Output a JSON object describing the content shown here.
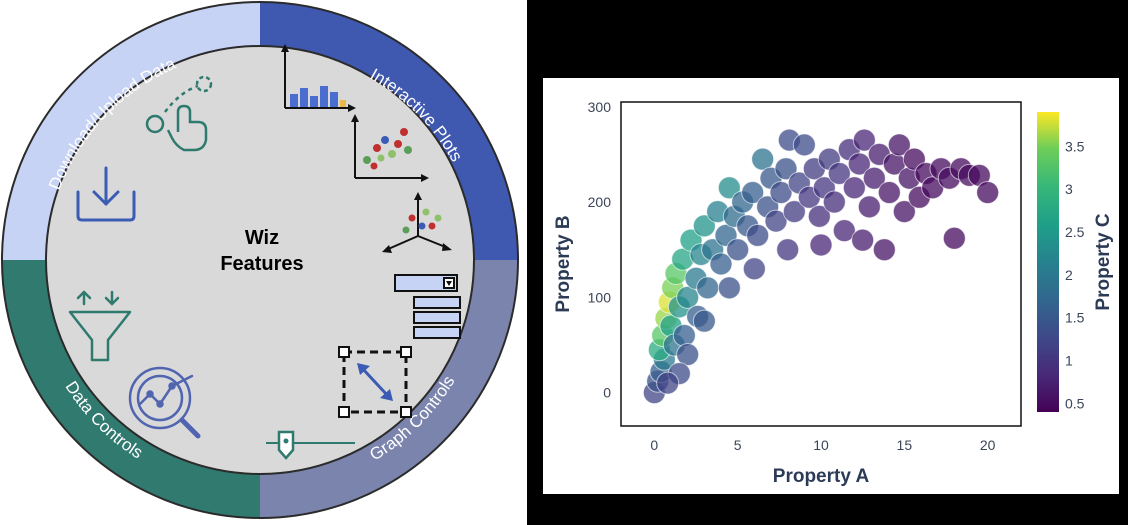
{
  "features_wheel": {
    "center_line1": "Wiz",
    "center_line2": "Features",
    "segments": {
      "download": {
        "label": "Download/Upload Data",
        "color": "#c7d3f5"
      },
      "interactive": {
        "label": "Interactive Plots",
        "color": "#3f58b0"
      },
      "graph": {
        "label": "Graph Controls",
        "color": "#7a84ad"
      },
      "data": {
        "label": "Data Controls",
        "color": "#317a70"
      }
    },
    "inner_color": "#d9d9d9"
  },
  "chart_data": {
    "type": "scatter",
    "title": "",
    "xlabel": "Property A",
    "ylabel": "Property B",
    "colorbar_label": "Property C",
    "xlim": [
      -2,
      22
    ],
    "ylim": [
      -35,
      305
    ],
    "x_ticks": [
      0,
      5,
      10,
      15,
      20
    ],
    "y_ticks": [
      0,
      100,
      200,
      300
    ],
    "colorbar_ticks": [
      0.5,
      1,
      1.5,
      2,
      2.5,
      3,
      3.5
    ],
    "colorbar_range": [
      0.4,
      3.9
    ],
    "colorscale": "viridis",
    "points": [
      {
        "x": 0.0,
        "y": 0,
        "c": 1.2
      },
      {
        "x": 0.2,
        "y": 12,
        "c": 1.4
      },
      {
        "x": 0.4,
        "y": 22,
        "c": 1.6
      },
      {
        "x": 0.6,
        "y": 35,
        "c": 2.0
      },
      {
        "x": 0.3,
        "y": 45,
        "c": 2.8
      },
      {
        "x": 0.5,
        "y": 60,
        "c": 3.3
      },
      {
        "x": 0.7,
        "y": 78,
        "c": 3.6
      },
      {
        "x": 0.9,
        "y": 95,
        "c": 3.8
      },
      {
        "x": 1.1,
        "y": 110,
        "c": 3.5
      },
      {
        "x": 1.3,
        "y": 125,
        "c": 3.3
      },
      {
        "x": 1.0,
        "y": 70,
        "c": 2.6
      },
      {
        "x": 1.5,
        "y": 90,
        "c": 2.4
      },
      {
        "x": 1.2,
        "y": 50,
        "c": 1.9
      },
      {
        "x": 1.8,
        "y": 60,
        "c": 1.6
      },
      {
        "x": 2.0,
        "y": 100,
        "c": 2.2
      },
      {
        "x": 1.7,
        "y": 140,
        "c": 2.7
      },
      {
        "x": 2.2,
        "y": 160,
        "c": 2.6
      },
      {
        "x": 2.5,
        "y": 120,
        "c": 2.0
      },
      {
        "x": 2.8,
        "y": 145,
        "c": 2.2
      },
      {
        "x": 3.0,
        "y": 175,
        "c": 2.4
      },
      {
        "x": 2.6,
        "y": 80,
        "c": 1.6
      },
      {
        "x": 3.2,
        "y": 110,
        "c": 1.7
      },
      {
        "x": 3.5,
        "y": 150,
        "c": 1.9
      },
      {
        "x": 3.8,
        "y": 190,
        "c": 2.1
      },
      {
        "x": 4.0,
        "y": 135,
        "c": 1.6
      },
      {
        "x": 4.3,
        "y": 165,
        "c": 1.7
      },
      {
        "x": 4.5,
        "y": 215,
        "c": 2.3
      },
      {
        "x": 4.8,
        "y": 185,
        "c": 1.8
      },
      {
        "x": 5.0,
        "y": 150,
        "c": 1.4
      },
      {
        "x": 5.3,
        "y": 200,
        "c": 1.7
      },
      {
        "x": 5.6,
        "y": 175,
        "c": 1.5
      },
      {
        "x": 5.9,
        "y": 210,
        "c": 1.6
      },
      {
        "x": 6.2,
        "y": 165,
        "c": 1.3
      },
      {
        "x": 6.5,
        "y": 245,
        "c": 1.9
      },
      {
        "x": 6.8,
        "y": 195,
        "c": 1.4
      },
      {
        "x": 7.0,
        "y": 225,
        "c": 1.5
      },
      {
        "x": 7.3,
        "y": 180,
        "c": 1.2
      },
      {
        "x": 7.6,
        "y": 210,
        "c": 1.3
      },
      {
        "x": 7.9,
        "y": 235,
        "c": 1.4
      },
      {
        "x": 8.1,
        "y": 265,
        "c": 1.3
      },
      {
        "x": 8.4,
        "y": 190,
        "c": 1.1
      },
      {
        "x": 8.7,
        "y": 220,
        "c": 1.2
      },
      {
        "x": 9.0,
        "y": 260,
        "c": 1.3
      },
      {
        "x": 9.3,
        "y": 205,
        "c": 1.0
      },
      {
        "x": 9.6,
        "y": 235,
        "c": 1.1
      },
      {
        "x": 9.9,
        "y": 185,
        "c": 0.9
      },
      {
        "x": 10.2,
        "y": 215,
        "c": 1.0
      },
      {
        "x": 10.5,
        "y": 245,
        "c": 1.1
      },
      {
        "x": 10.8,
        "y": 200,
        "c": 0.9
      },
      {
        "x": 11.1,
        "y": 230,
        "c": 1.0
      },
      {
        "x": 11.4,
        "y": 170,
        "c": 0.8
      },
      {
        "x": 11.7,
        "y": 255,
        "c": 0.9
      },
      {
        "x": 12.0,
        "y": 215,
        "c": 0.8
      },
      {
        "x": 12.3,
        "y": 240,
        "c": 0.8
      },
      {
        "x": 12.6,
        "y": 265,
        "c": 0.8
      },
      {
        "x": 12.9,
        "y": 195,
        "c": 0.7
      },
      {
        "x": 13.2,
        "y": 225,
        "c": 0.7
      },
      {
        "x": 13.5,
        "y": 250,
        "c": 0.7
      },
      {
        "x": 13.8,
        "y": 150,
        "c": 0.6
      },
      {
        "x": 14.1,
        "y": 210,
        "c": 0.6
      },
      {
        "x": 14.4,
        "y": 240,
        "c": 0.6
      },
      {
        "x": 14.7,
        "y": 260,
        "c": 0.6
      },
      {
        "x": 15.0,
        "y": 190,
        "c": 0.6
      },
      {
        "x": 15.3,
        "y": 225,
        "c": 0.6
      },
      {
        "x": 15.6,
        "y": 245,
        "c": 0.5
      },
      {
        "x": 15.9,
        "y": 205,
        "c": 0.5
      },
      {
        "x": 16.3,
        "y": 230,
        "c": 0.5
      },
      {
        "x": 16.7,
        "y": 215,
        "c": 0.5
      },
      {
        "x": 17.2,
        "y": 235,
        "c": 0.5
      },
      {
        "x": 17.7,
        "y": 225,
        "c": 0.5
      },
      {
        "x": 18.0,
        "y": 162,
        "c": 0.5
      },
      {
        "x": 18.4,
        "y": 235,
        "c": 0.5
      },
      {
        "x": 18.9,
        "y": 228,
        "c": 0.5
      },
      {
        "x": 19.5,
        "y": 228,
        "c": 0.5
      },
      {
        "x": 20.0,
        "y": 210,
        "c": 0.5
      },
      {
        "x": 12.5,
        "y": 160,
        "c": 0.7
      },
      {
        "x": 10.0,
        "y": 155,
        "c": 0.8
      },
      {
        "x": 8.0,
        "y": 150,
        "c": 1.0
      },
      {
        "x": 6.0,
        "y": 130,
        "c": 1.2
      },
      {
        "x": 4.5,
        "y": 110,
        "c": 1.4
      },
      {
        "x": 3.0,
        "y": 75,
        "c": 1.5
      },
      {
        "x": 2.0,
        "y": 40,
        "c": 1.4
      },
      {
        "x": 1.5,
        "y": 20,
        "c": 1.3
      },
      {
        "x": 0.8,
        "y": 10,
        "c": 1.2
      }
    ]
  }
}
